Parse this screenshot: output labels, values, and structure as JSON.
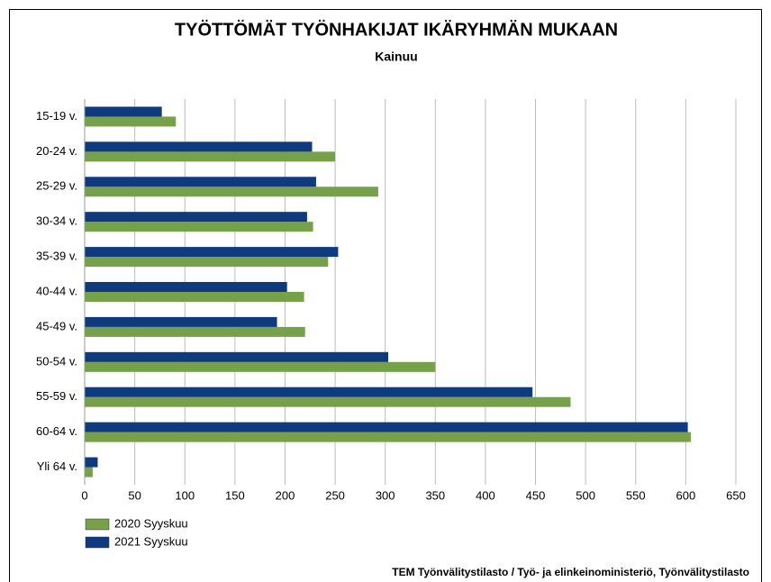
{
  "chart_data": {
    "type": "barh",
    "title": "TYÖTTÖMÄT TYÖNHAKIJAT IKÄRYHMÄN MUKAAN",
    "subtitle": "Kainuu",
    "source": "TEM Työnvälitystilasto / Työ- ja elinkeinoministeriö, Työnvälitystilasto",
    "categories": [
      "15-19 v.",
      "20-24 v.",
      "25-29 v.",
      "30-34 v.",
      "35-39 v.",
      "40-44 v.",
      "45-49 v.",
      "50-54 v.",
      "55-59 v.",
      "60-64 v.",
      "Yli 64 v."
    ],
    "series": [
      {
        "name": "2020 Syyskuu",
        "color": "#76a04a",
        "values": [
          91,
          250,
          293,
          228,
          243,
          219,
          220,
          350,
          485,
          605,
          8
        ]
      },
      {
        "name": "2021 Syyskuu",
        "color": "#103a7e",
        "values": [
          77,
          227,
          231,
          222,
          253,
          202,
          192,
          303,
          447,
          602,
          13
        ]
      }
    ],
    "xlim": [
      0,
      650
    ],
    "xticks": [
      0,
      50,
      100,
      150,
      200,
      250,
      300,
      350,
      400,
      450,
      500,
      550,
      600,
      650
    ],
    "grid": true,
    "legend": "bottom-left"
  }
}
